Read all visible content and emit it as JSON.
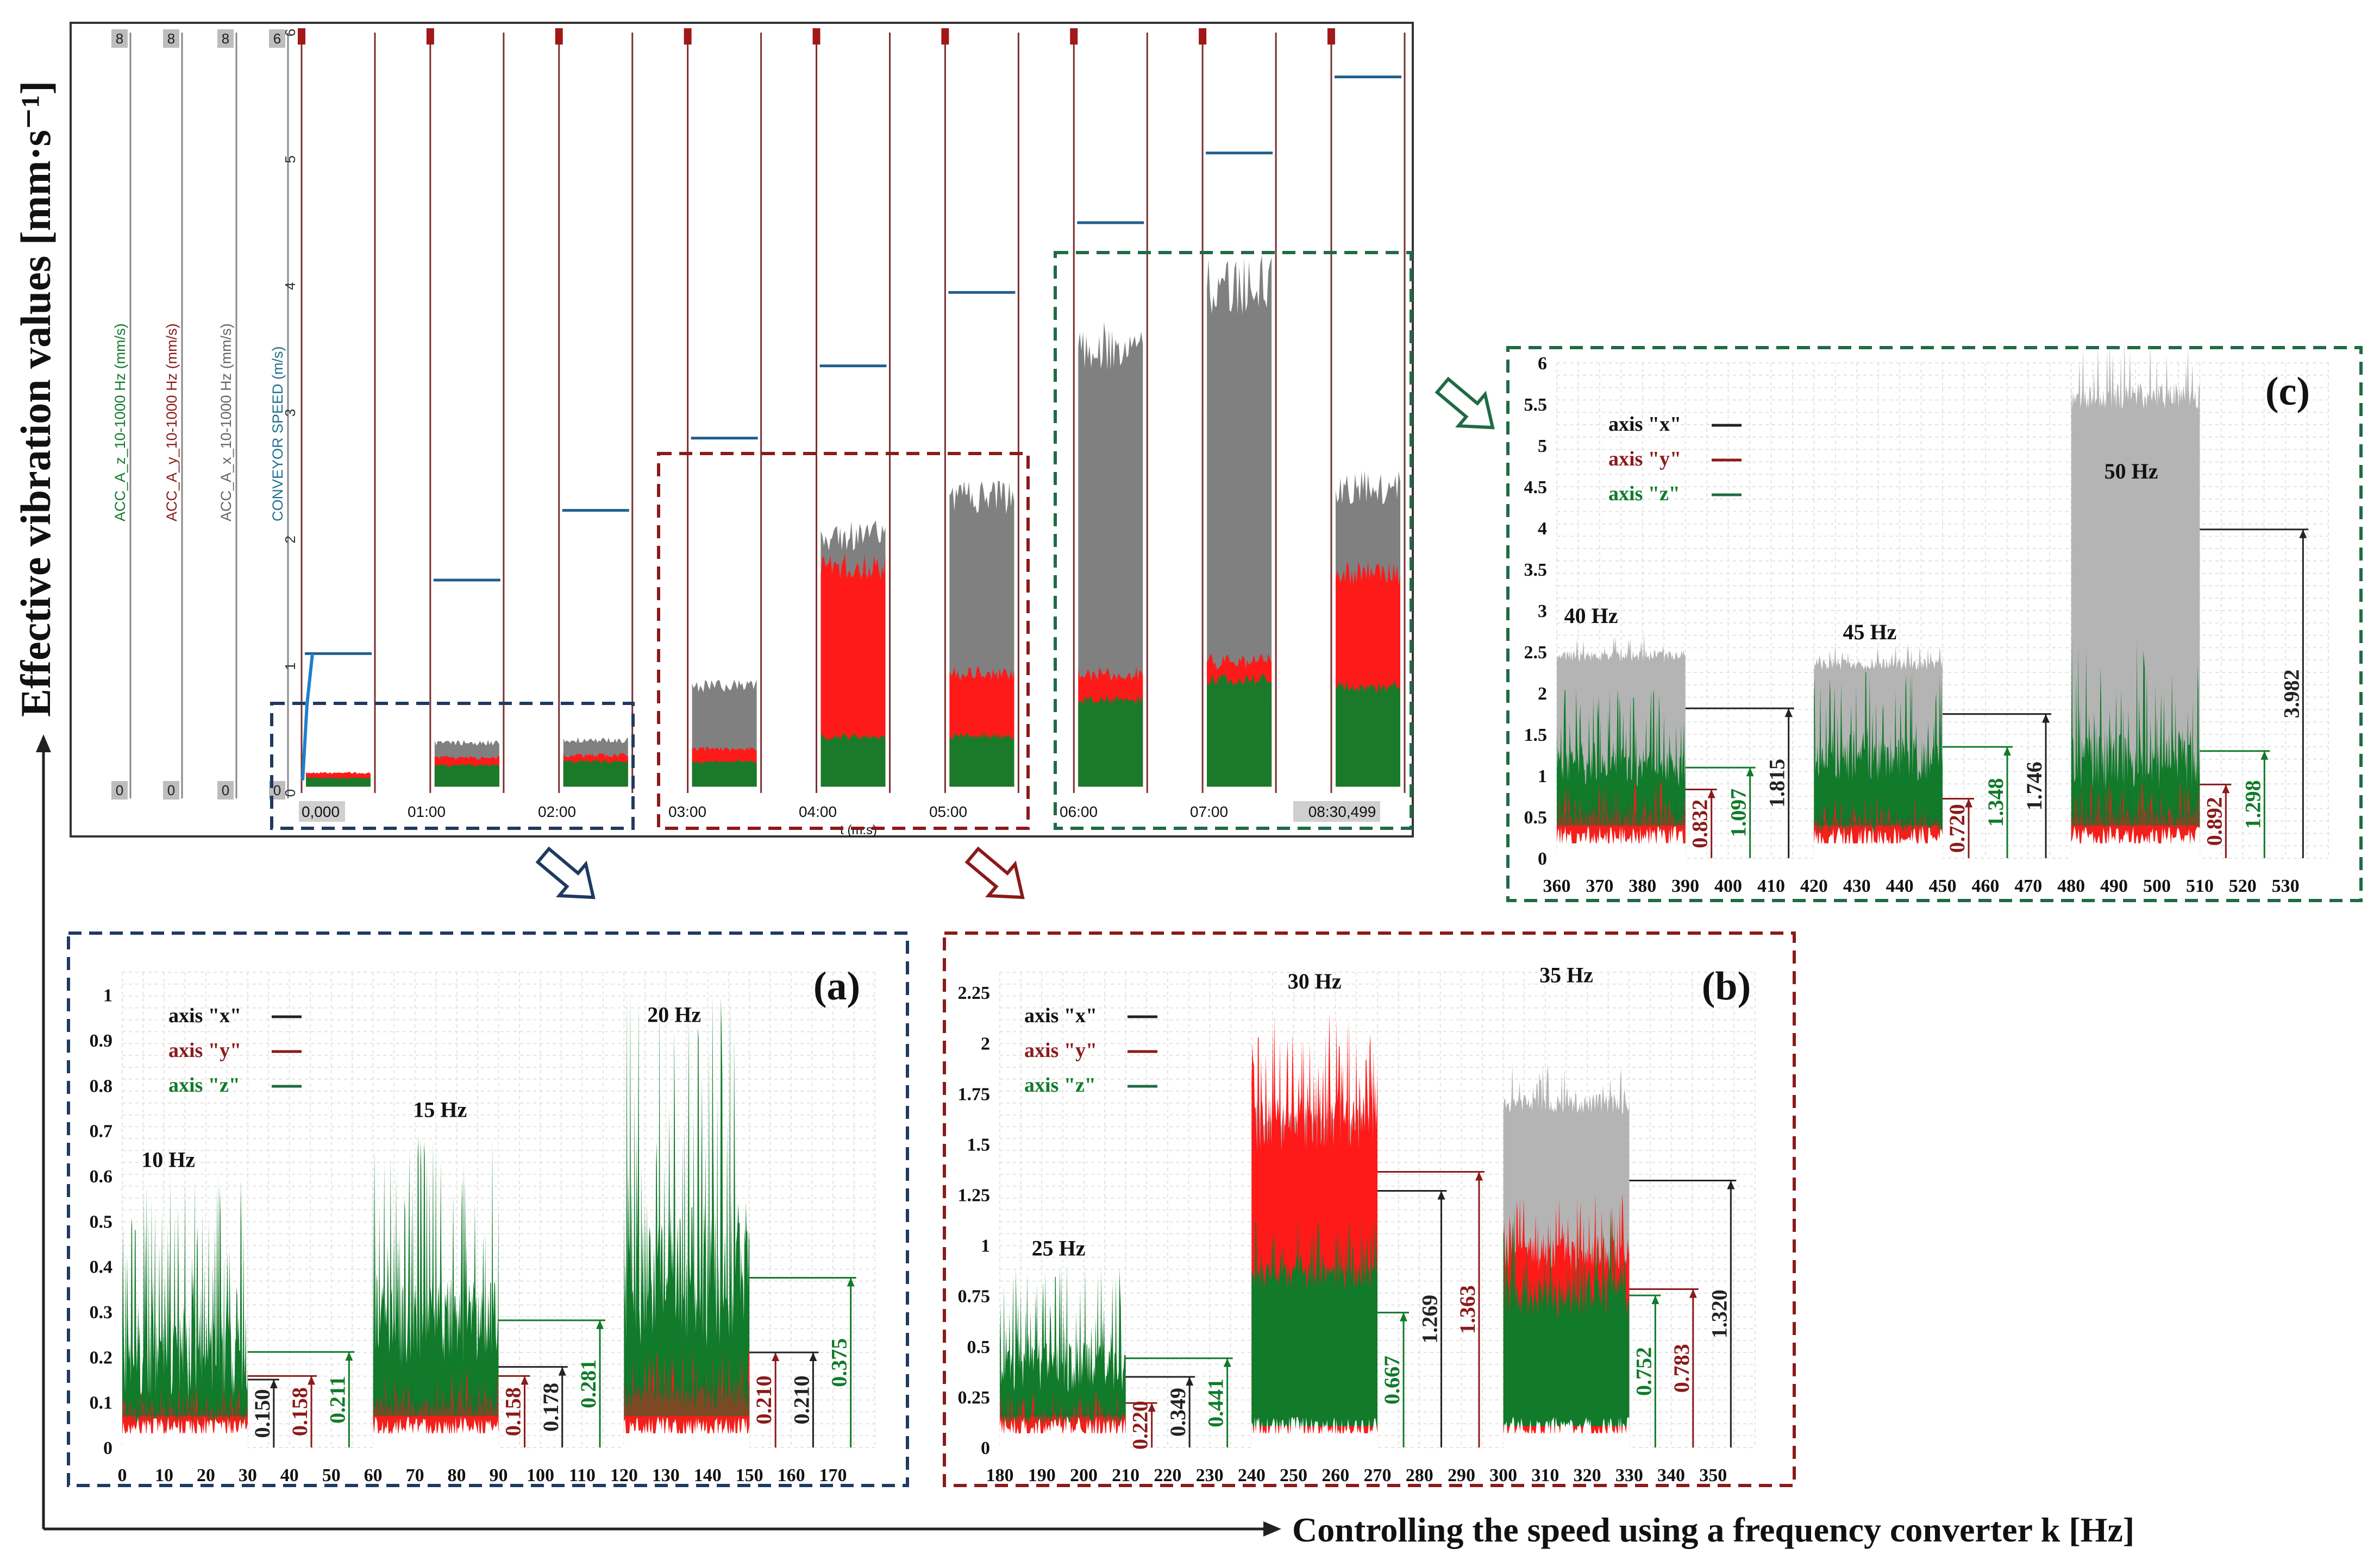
{
  "figure": {
    "y_axis_label": "Effective vibration values [mm·s⁻¹]",
    "x_axis_label": "Controlling the speed using a frequency converter k [Hz]"
  },
  "colors": {
    "x_axis": "#808080",
    "x_axis_light": "#b4b4b4",
    "y_axis": "#ff1a1a",
    "z_axis": "#117a2b",
    "dark_red": "#8b1a1a",
    "navy": "#1f3a60",
    "dark_green": "#1f6b45",
    "speed_line": "#1f5f8f"
  },
  "chart_data": [
    {
      "id": "overview",
      "type": "area",
      "title": "",
      "channels": [
        {
          "name": "ACC_A_z_10-1000 Hz (mm/s)",
          "color": "#117a2b",
          "top": "8",
          "bottom": "0"
        },
        {
          "name": "ACC_A_y_10-1000 Hz (mm/s)",
          "color": "#8b1a1a",
          "top": "8",
          "bottom": "0"
        },
        {
          "name": "ACC_A_x_10-1000 Hz (mm/s)",
          "color": "#666666",
          "top": "8",
          "bottom": "0"
        },
        {
          "name": "CONVEYOR SPEED (m/s)",
          "color": "#1f6f8f",
          "top": "6",
          "bottom": "0"
        }
      ],
      "xlabel": "t (m:s)",
      "x_ticks": [
        "0,000",
        "01:00",
        "02:00",
        "03:00",
        "04:00",
        "05:00",
        "06:00",
        "07:00",
        "08:30,499"
      ],
      "y_ticks": [
        "0",
        "1",
        "2",
        "3",
        "4",
        "5",
        "6"
      ],
      "ylim": [
        0,
        6
      ],
      "segments": [
        {
          "frequency_hz": 10,
          "speed": 1.1,
          "x_top": 0.15,
          "y_top": 0.16,
          "z_top": 0.12
        },
        {
          "frequency_hz": 15,
          "speed": 1.68,
          "x_top": 0.4,
          "y_top": 0.28,
          "z_top": 0.22
        },
        {
          "frequency_hz": 20,
          "speed": 2.23,
          "x_top": 0.42,
          "y_top": 0.3,
          "z_top": 0.25
        },
        {
          "frequency_hz": 25,
          "speed": 2.8,
          "x_top": 0.85,
          "y_top": 0.35,
          "z_top": 0.25
        },
        {
          "frequency_hz": 30,
          "speed": 3.37,
          "x_top": 2.05,
          "y_top": 1.8,
          "z_top": 0.45
        },
        {
          "frequency_hz": 35,
          "speed": 3.95,
          "x_top": 2.35,
          "y_top": 0.95,
          "z_top": 0.45
        },
        {
          "frequency_hz": 40,
          "speed": 4.5,
          "x_top": 3.55,
          "y_top": 0.95,
          "z_top": 0.75
        },
        {
          "frequency_hz": 45,
          "speed": 5.05,
          "x_top": 4.05,
          "y_top": 1.05,
          "z_top": 0.9
        },
        {
          "frequency_hz": 50,
          "speed": 5.65,
          "x_top": 2.45,
          "y_top": 1.75,
          "z_top": 0.85
        }
      ]
    },
    {
      "id": "a",
      "type": "area",
      "panel_label": "(a)",
      "legend": [
        {
          "name": "axis \"x\"",
          "color": "#222222"
        },
        {
          "name": "axis \"y\"",
          "color": "#8b1a1a"
        },
        {
          "name": "axis \"z\"",
          "color": "#117a2b"
        }
      ],
      "xlim": [
        0,
        180
      ],
      "ylim": [
        0,
        1.05
      ],
      "x_ticks": [
        "0",
        "10",
        "20",
        "30",
        "40",
        "50",
        "60",
        "70",
        "80",
        "90",
        "100",
        "110",
        "120",
        "130",
        "140",
        "150",
        "160",
        "170"
      ],
      "y_ticks": [
        "0",
        "0.1",
        "0.2",
        "0.3",
        "0.4",
        "0.5",
        "0.6",
        "0.7",
        "0.8",
        "0.9",
        "1"
      ],
      "series": [
        {
          "label": "10 Hz",
          "x_start": 0,
          "x_end": 30,
          "z_mean": 0.2,
          "z_peak": 0.6,
          "y_mean": 0.09,
          "x_mean": 0.12,
          "label_pos": [
            11,
            0.62
          ],
          "values": [
            {
              "axis": "x",
              "value": 0.15
            },
            {
              "axis": "y",
              "value": 0.158
            },
            {
              "axis": "z",
              "value": 0.211
            }
          ]
        },
        {
          "label": "15 Hz",
          "x_start": 60,
          "x_end": 90,
          "z_mean": 0.28,
          "z_peak": 0.69,
          "y_mean": 0.11,
          "x_mean": 0.13,
          "label_pos": [
            76,
            0.73
          ],
          "values": [
            {
              "axis": "y",
              "value": 0.158
            },
            {
              "axis": "x",
              "value": 0.178
            },
            {
              "axis": "z",
              "value": 0.281
            }
          ]
        },
        {
          "label": "20 Hz",
          "x_start": 120,
          "x_end": 150,
          "z_mean": 0.38,
          "z_peak": 1.02,
          "y_mean": 0.14,
          "x_mean": 0.15,
          "label_pos": [
            132,
            0.94
          ],
          "values": [
            {
              "axis": "y",
              "value": 0.21
            },
            {
              "axis": "x",
              "value": 0.21
            },
            {
              "axis": "z",
              "value": 0.375
            }
          ]
        }
      ]
    },
    {
      "id": "b",
      "type": "area",
      "panel_label": "(b)",
      "legend": [
        {
          "name": "axis \"x\"",
          "color": "#222222"
        },
        {
          "name": "axis \"y\"",
          "color": "#8b1a1a"
        },
        {
          "name": "axis \"z\"",
          "color": "#117a2b"
        }
      ],
      "xlim": [
        180,
        360
      ],
      "ylim": [
        0,
        2.35
      ],
      "x_ticks": [
        "180",
        "190",
        "200",
        "210",
        "220",
        "230",
        "240",
        "250",
        "260",
        "270",
        "280",
        "290",
        "300",
        "310",
        "320",
        "330",
        "340",
        "350"
      ],
      "y_ticks": [
        "0",
        "0.25",
        "0.5",
        "0.75",
        "1",
        "1.25",
        "1.5",
        "1.75",
        "2",
        "2.25"
      ],
      "series": [
        {
          "label": "25 Hz",
          "x_start": 180,
          "x_end": 210,
          "z_mean": 0.4,
          "z_peak": 0.92,
          "y_mean": 0.18,
          "x_mean": 0.2,
          "label_pos": [
            194,
            0.95
          ],
          "values": [
            {
              "axis": "y",
              "value": 0.22
            },
            {
              "axis": "x",
              "value": 0.349
            },
            {
              "axis": "z",
              "value": 0.441
            }
          ]
        },
        {
          "label": "30 Hz",
          "x_start": 240,
          "x_end": 270,
          "z_mean": 0.85,
          "z_peak": 1.15,
          "y_mean": 1.6,
          "x_mean": 1.62,
          "label_pos": [
            255,
            2.27
          ],
          "values": [
            {
              "axis": "z",
              "value": 0.667
            },
            {
              "axis": "x",
              "value": 1.269
            },
            {
              "axis": "y",
              "value": 1.363
            }
          ]
        },
        {
          "label": "35 Hz",
          "x_start": 300,
          "x_end": 330,
          "z_mean": 0.75,
          "z_peak": 1.2,
          "y_mean": 0.95,
          "x_mean": 1.7,
          "label_pos": [
            315,
            2.3
          ],
          "values": [
            {
              "axis": "z",
              "value": 0.752
            },
            {
              "axis": "y",
              "value": 0.783
            },
            {
              "axis": "x",
              "value": 1.32
            }
          ]
        }
      ]
    },
    {
      "id": "c",
      "type": "area",
      "panel_label": "(c)",
      "legend": [
        {
          "name": "axis \"x\"",
          "color": "#222222"
        },
        {
          "name": "axis \"y\"",
          "color": "#8b1a1a"
        },
        {
          "name": "axis \"z\"",
          "color": "#117a2b"
        }
      ],
      "xlim": [
        360,
        540
      ],
      "ylim": [
        0,
        6
      ],
      "x_ticks": [
        "360",
        "370",
        "380",
        "390",
        "400",
        "410",
        "420",
        "430",
        "440",
        "450",
        "460",
        "470",
        "480",
        "490",
        "500",
        "510",
        "520",
        "530"
      ],
      "y_ticks": [
        "0",
        "0.5",
        "1",
        "1.5",
        "2",
        "2.5",
        "3",
        "3.5",
        "4",
        "4.5",
        "5",
        "5.5",
        "6"
      ],
      "series": [
        {
          "label": "40 Hz",
          "x_start": 360,
          "x_end": 390,
          "z_mean": 1.1,
          "z_peak": 2.05,
          "y_mean": 0.6,
          "x_mean": 2.45,
          "label_pos": [
            368,
            2.85
          ],
          "values": [
            {
              "axis": "y",
              "value": 0.832
            },
            {
              "axis": "z",
              "value": 1.097
            },
            {
              "axis": "x",
              "value": 1.815
            }
          ]
        },
        {
          "label": "45 Hz",
          "x_start": 420,
          "x_end": 450,
          "z_mean": 1.2,
          "z_peak": 2.3,
          "y_mean": 0.5,
          "x_mean": 2.35,
          "label_pos": [
            433,
            2.65
          ],
          "values": [
            {
              "axis": "y",
              "value": 0.72
            },
            {
              "axis": "z",
              "value": 1.348
            },
            {
              "axis": "x",
              "value": 1.746
            }
          ]
        },
        {
          "label": "50 Hz",
          "x_start": 480,
          "x_end": 510,
          "z_mean": 1.2,
          "z_peak": 2.7,
          "y_mean": 0.6,
          "x_mean": 5.6,
          "label_pos": [
            494,
            4.6
          ],
          "values": [
            {
              "axis": "y",
              "value": 0.892
            },
            {
              "axis": "z",
              "value": 1.298
            },
            {
              "axis": "x",
              "value": 3.982
            }
          ]
        }
      ]
    }
  ]
}
